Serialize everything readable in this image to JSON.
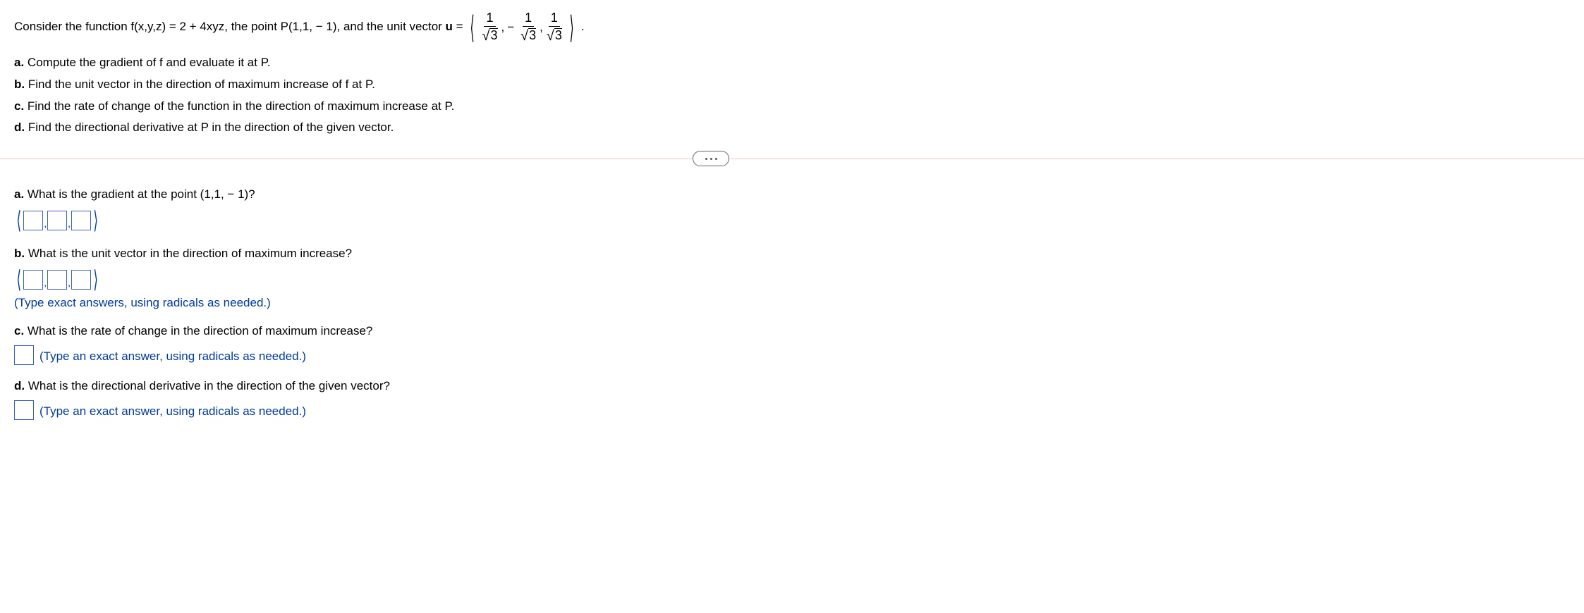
{
  "problem": {
    "intro_prefix": "Consider the function f(x,y,z) = 2 + 4xyz, the point P(1,1, − 1), and the unit vector ",
    "vector_letter": "u",
    "equals": " = ",
    "period": "."
  },
  "vector": {
    "comp1_num": "1",
    "comp1_den_radicand": "3",
    "comp2_num": "1",
    "comp2_den_radicand": "3",
    "comp3_num": "1",
    "comp3_den_radicand": "3",
    "minus": "−"
  },
  "subparts": {
    "a": "Compute the gradient of f and evaluate it at P.",
    "b": "Find the unit vector in the direction of maximum increase of f at P.",
    "c": "Find the rate of change of the function in the direction of maximum increase at P.",
    "d": "Find the directional derivative at P in the direction of the given vector."
  },
  "labels": {
    "a": "a.",
    "b": "b.",
    "c": "c.",
    "d": "d."
  },
  "questions": {
    "a": "What is the gradient at the point (1,1, − 1)?",
    "b": "What is the unit vector in the direction of maximum increase?",
    "c": "What is the rate of change in the direction of maximum increase?",
    "d": "What is the directional derivative in the direction of the given vector?"
  },
  "hints": {
    "exact_plural": "(Type exact answers, using radicals as needed.)",
    "exact_singular": "(Type an exact answer, using radicals as needed.)"
  }
}
